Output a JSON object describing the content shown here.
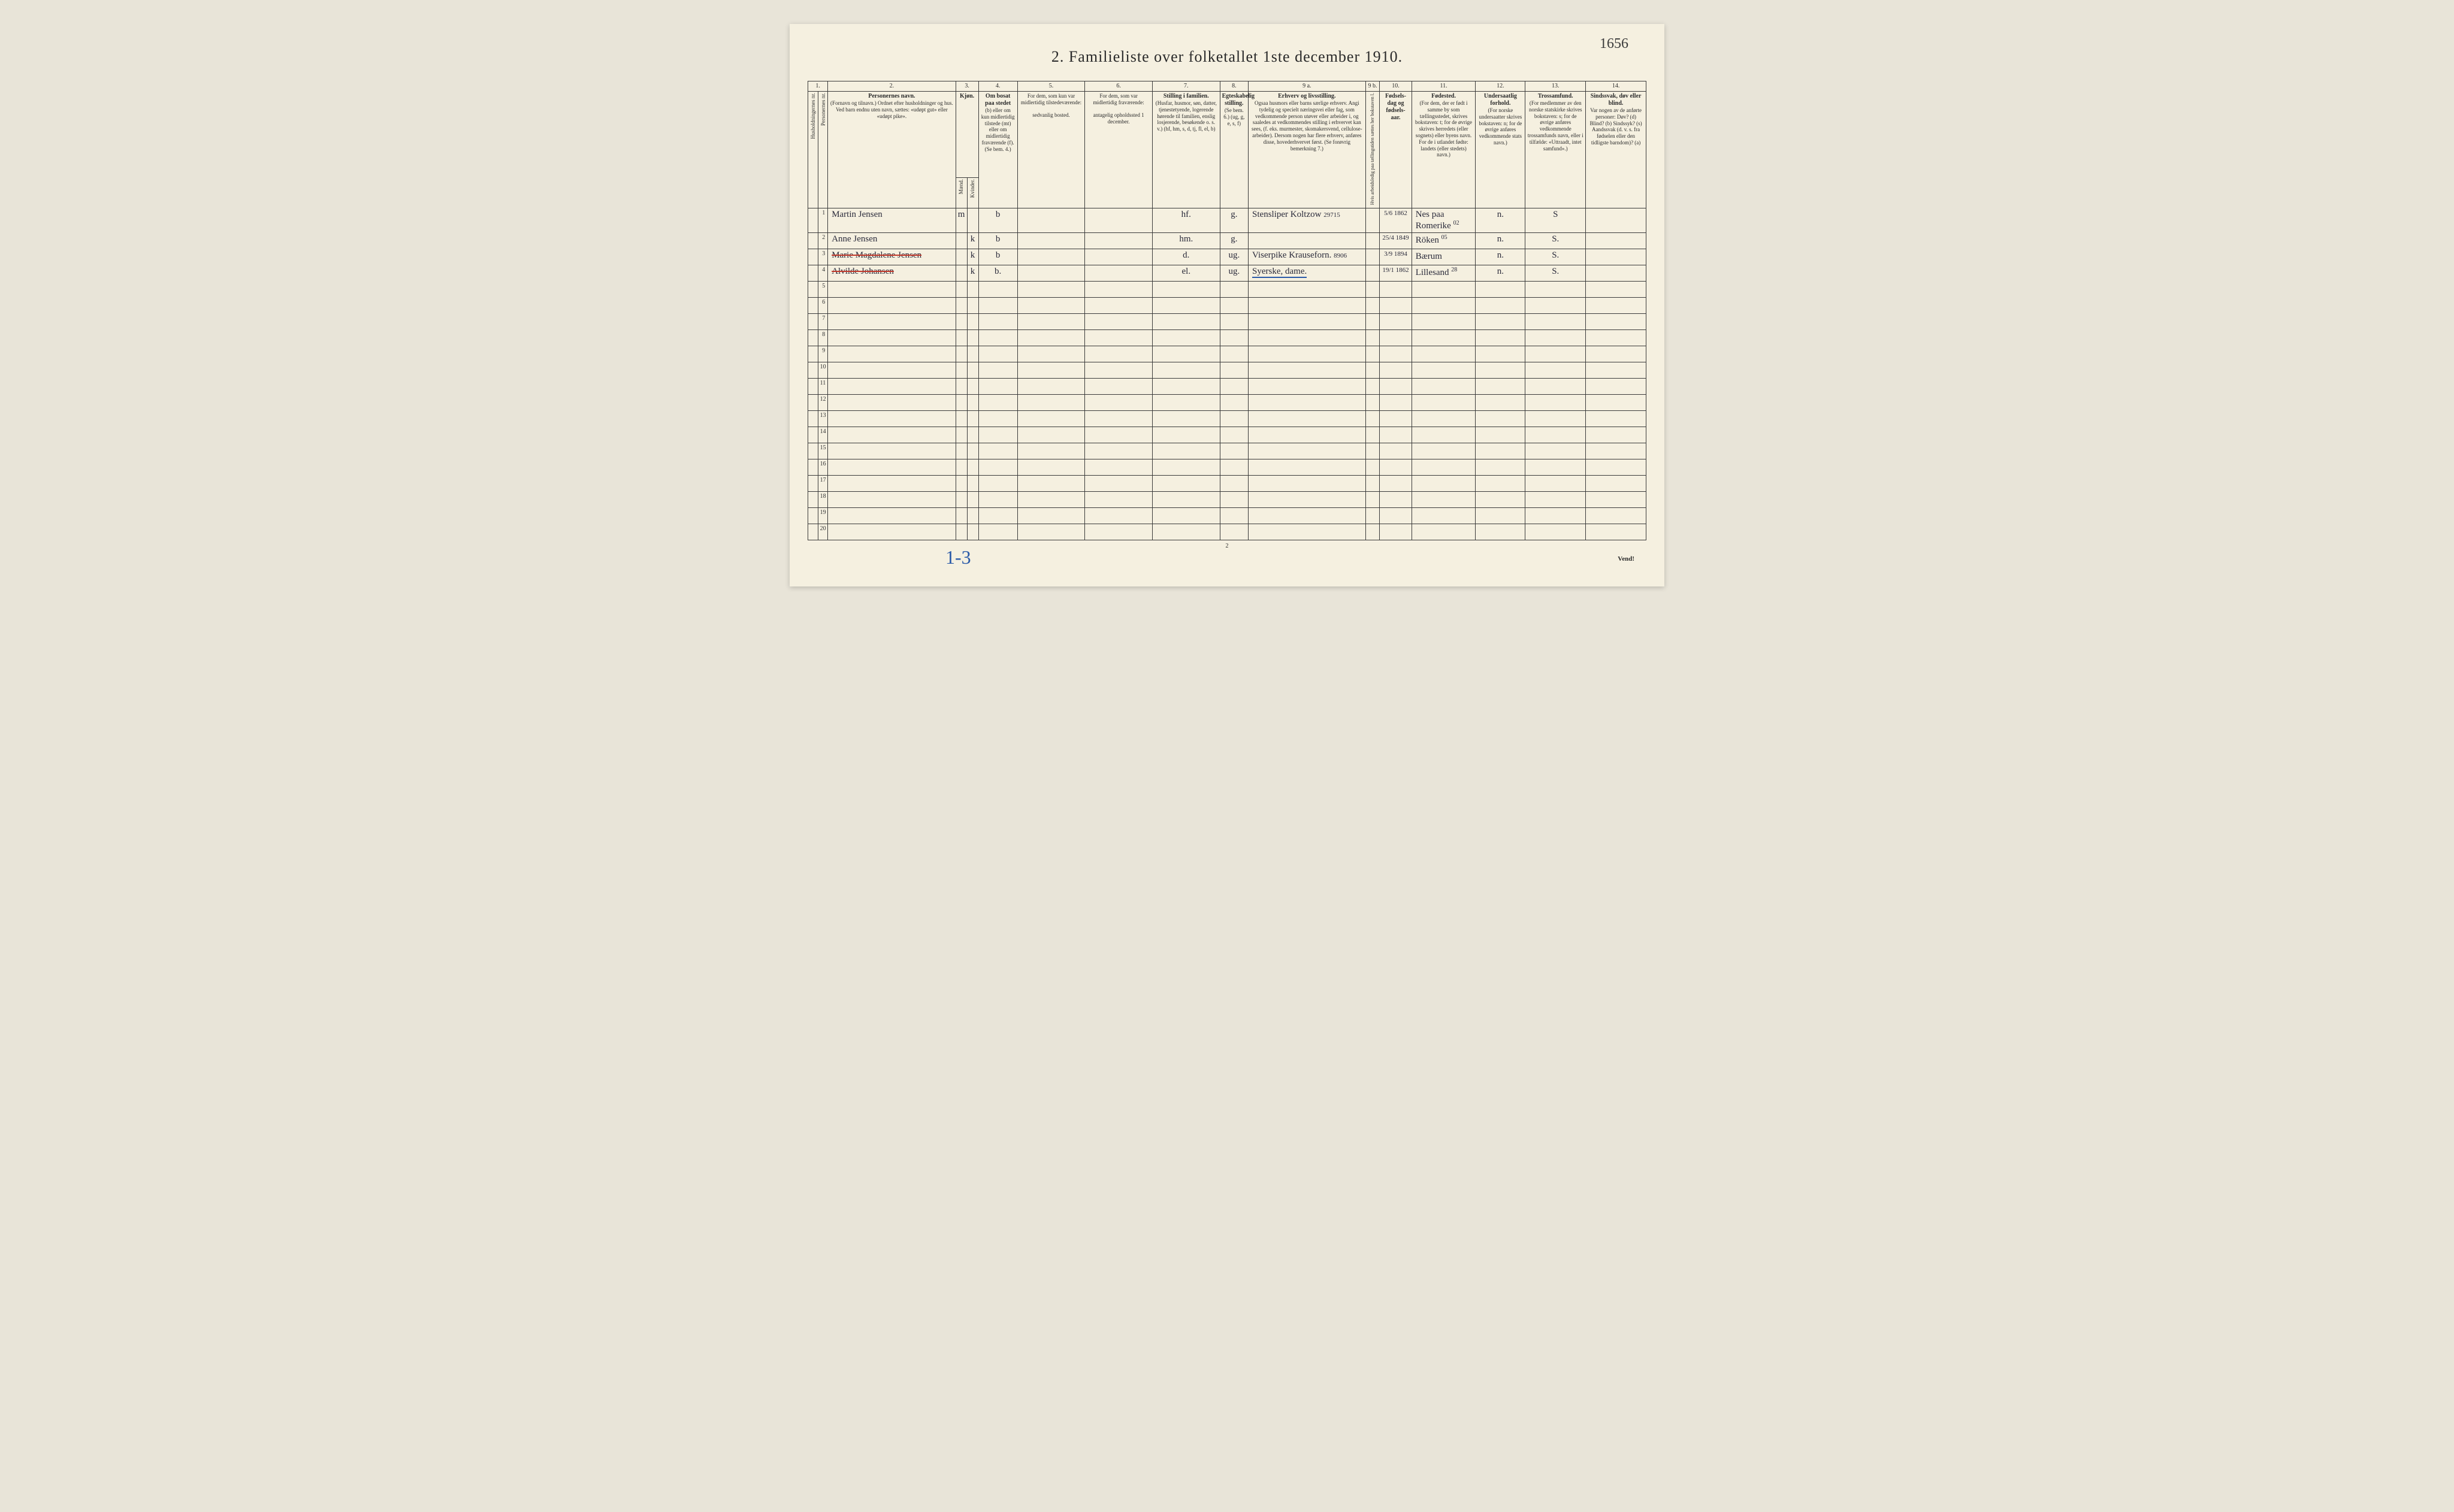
{
  "cornerNote": "1656",
  "title": "2.  Familieliste over folketallet 1ste december 1910.",
  "columnsTop": [
    "1.",
    "2.",
    "3.",
    "4.",
    "5.",
    "6.",
    "7.",
    "8.",
    "9 a.",
    "9 b.",
    "10.",
    "11.",
    "12.",
    "13.",
    "14."
  ],
  "headers": {
    "c1": "Husholdningernes nr.",
    "c2": "Personernes nr.",
    "c3_title": "Personernes navn.",
    "c3_sub": "(Fornavn og tilnavn.) Ordnet efter husholdninger og hus. Ved barn endnu uten navn, sættes: «udøpt gut» eller «udøpt pike».",
    "c4_title": "Kjøn.",
    "c4_m": "Mænd.",
    "c4_k": "Kvinder.",
    "c4_mk": "m.  k.",
    "c5_title": "Om bosat paa stedet",
    "c5_sub": "(b) eller om kun midlertidig tilstede (mt) eller om midlertidig fraværende (f). (Se bem. 4.)",
    "c6_title": "For dem, som kun var midlertidig tilstedeværende:",
    "c6_sub": "sedvanlig bosted.",
    "c7_title": "For dem, som var midlertidig fraværende:",
    "c7_sub": "antagelig opholdssted 1 december.",
    "c8_title": "Stilling i familien.",
    "c8_sub": "(Husfar, husmor, søn, datter, tjenestetyende, logerende hørende til familien, enslig losjerende, besøkende o. s. v.) (hf, hm, s, d, tj, fl, el, b)",
    "c9_title": "Egteskabelig stilling.",
    "c9_sub": "(Se bem. 6.) (ug, g, e, s, f)",
    "c10_title": "Erhverv og livsstilling.",
    "c10_sub": "Ogsaa husmors eller barns særlige erhverv. Angi tydelig og specielt næringsvei eller fag, som vedkommende person utøver eller arbeider i, og saaledes at vedkommendes stilling i erhvervet kan sees, (f. eks. murmester, skomakersvend, cellulose-arbeider). Dersom nogen har flere erhverv, anføres disse, hovederhvervet først. (Se forøvrig bemerkning 7.)",
    "c10b": "Hvis arbeidsledig paa tællingstiden sættes her bokstaven l.",
    "c11_title": "Fødsels-dag og fødsels-aar.",
    "c12_title": "Fødested.",
    "c12_sub": "(For dem, der er født i samme by som tællingsstedet, skrives bokstaven: t; for de øvrige skrives herredets (eller sognets) eller byens navn. For de i utlandet fødte: landets (eller stedets) navn.)",
    "c13_title": "Undersaatlig forhold.",
    "c13_sub": "(For norske undersaatter skrives bokstaven: n; for de øvrige anføres vedkommende stats navn.)",
    "c14_title": "Trossamfund.",
    "c14_sub": "(For medlemmer av den norske statskirke skrives bokstaven: s; for de øvrige anføres vedkommende trossamfunds navn, eller i tilfælde: «Uttraadt, intet samfund».)",
    "c15_title": "Sindssvak, døv eller blind.",
    "c15_sub": "Var nogen av de anførte personer: Døv? (d) Blind? (b) Sindssyk? (s) Aandssvak (d. v. s. fra fødselen eller den tidligste barndom)? (a)"
  },
  "rows": [
    {
      "n": "1",
      "name": "Martin Jensen",
      "mk": "m",
      "bosat": "b",
      "fam": "hf.",
      "eg": "g.",
      "erhverv": "Stensliper Koltzow",
      "note9b": "29715",
      "fod": "5/6 1862",
      "sted": "Nes paa Romerike",
      "stedNote": "02",
      "und": "n.",
      "tro": "S"
    },
    {
      "n": "2",
      "name": "Anne Jensen",
      "mk": "k",
      "bosat": "b",
      "fam": "hm.",
      "eg": "g.",
      "erhverv": "",
      "note9b": "",
      "fod": "25/4 1849",
      "sted": "Röken",
      "stedNote": "05",
      "und": "n.",
      "tro": "S."
    },
    {
      "n": "3",
      "name": "Marie Magdalene Jensen",
      "mk": "k",
      "bosat": "b",
      "fam": "d.",
      "eg": "ug.",
      "erhverv": "Viserpike Krauseforn.",
      "note9b": "8906",
      "fod": "3/9 1894",
      "sted": "Bærum",
      "stedNote": "",
      "und": "n.",
      "tro": "S."
    },
    {
      "n": "4",
      "name": "Alvilde Johansen",
      "mk": "k",
      "bosat": "b.",
      "fam": "el.",
      "eg": "ug.",
      "erhverv": "Syerske, dame.",
      "note9b": "",
      "fod": "19/1 1862",
      "sted": "Lillesand",
      "stedNote": "28",
      "und": "n.",
      "tro": "S."
    }
  ],
  "emptyRowNums": [
    "5",
    "6",
    "7",
    "8",
    "9",
    "10",
    "11",
    "12",
    "13",
    "14",
    "15",
    "16",
    "17",
    "18",
    "19",
    "20"
  ],
  "footerLeft": "1-3",
  "pageNum": "2",
  "vend": "Vend!",
  "colors": {
    "paper": "#f5f0e0",
    "ink": "#2a2a2a",
    "handwriting": "#2a2a3a",
    "redStrike": "#c0392b",
    "blueStrike": "#2a5aa8"
  }
}
